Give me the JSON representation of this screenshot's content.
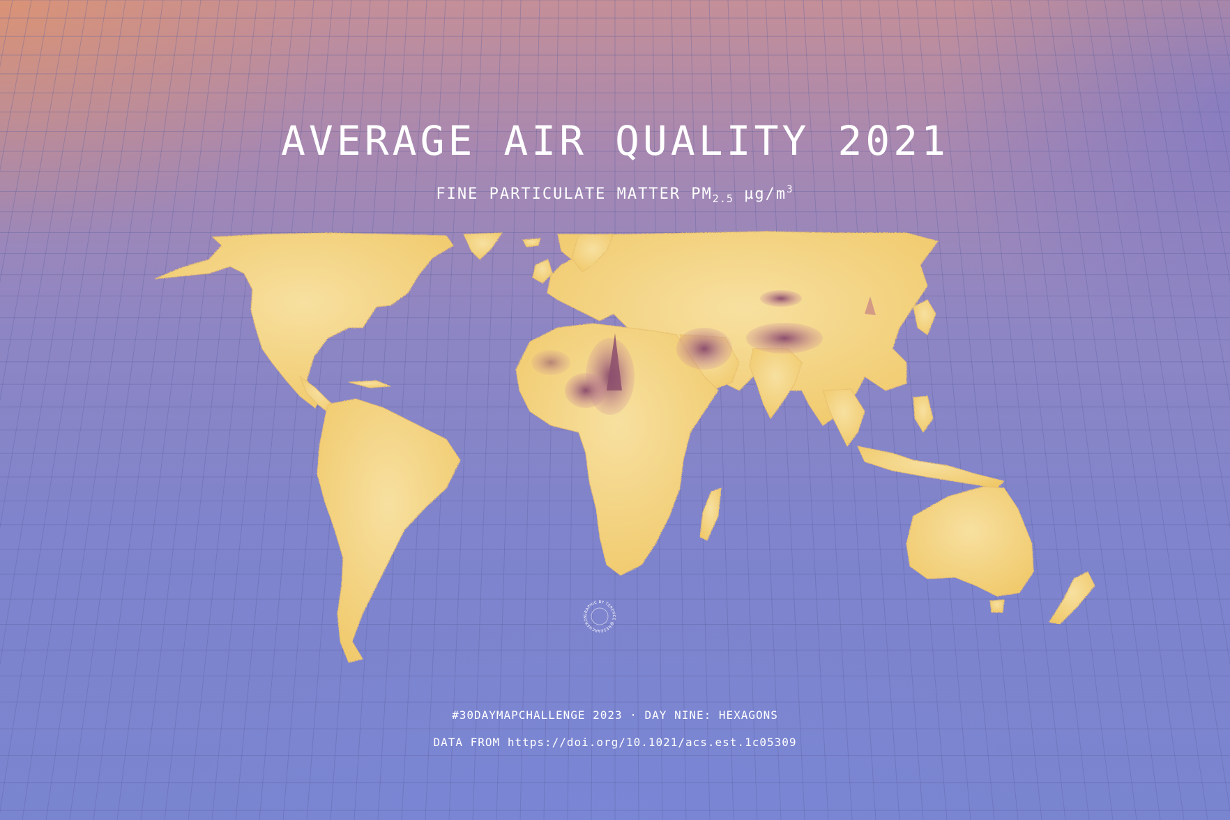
{
  "map": {
    "title": "AVERAGE AIR QUALITY 2021",
    "subtitle": {
      "prefix": "FINE PARTICULATE MATTER PM",
      "pm_subscript": "2.5",
      "unit": "µg/m",
      "unit_superscript": "3"
    },
    "credit_badge": "GRAPHIC BY TERENCE @RESEARCHEROSHUI",
    "footer": {
      "line1": "#30DAYMAPCHALLENGE 2023 · DAY NINE: HEXAGONS",
      "line2": "DATA FROM https://doi.org/10.1021/acs.est.1c05309"
    }
  },
  "colors": {
    "land": "#f2cf6e",
    "land_highlight": "#f7e2a6",
    "hotspot": "#b86a86",
    "hotspot_dark": "#8c4f6d",
    "grid_line": "#5a5f9e",
    "text": "#ffffff"
  }
}
